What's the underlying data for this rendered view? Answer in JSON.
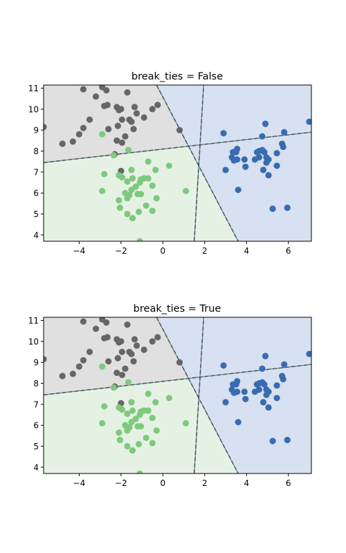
{
  "chart_data": [
    {
      "type": "scatter",
      "title": "break_ties = False",
      "xlabel": "",
      "ylabel": "",
      "xlim": [
        -5.7,
        7.1
      ],
      "ylim": [
        3.7,
        11.15
      ],
      "xticks": [
        -4,
        -2,
        0,
        2,
        4,
        6
      ],
      "yticks": [
        4,
        5,
        6,
        7,
        8,
        9,
        10,
        11
      ],
      "grid": false,
      "regions": [
        {
          "class": "gray",
          "color": "#e0e0e0"
        },
        {
          "class": "green",
          "color": "#e5f2e3"
        },
        {
          "class": "blue",
          "color": "#d8e1f1"
        }
      ],
      "decision_lines": [
        {
          "x1": -5.7,
          "y1": 7.45,
          "x2": 7.1,
          "y2": 8.9
        },
        {
          "x1": -0.3,
          "y1": 11.15,
          "x2": 3.6,
          "y2": 3.7
        },
        {
          "x1": 1.5,
          "y1": 3.7,
          "x2": 1.95,
          "y2": 11.15
        }
      ],
      "series": [
        {
          "color": "#666666",
          "points": [
            [
              -3.8,
              10.95
            ],
            [
              -2.9,
              11.05
            ],
            [
              -1.7,
              10.8
            ],
            [
              -3.2,
              10.6
            ],
            [
              -2.7,
              10.9
            ],
            [
              -2.8,
              10.15
            ],
            [
              -2.65,
              10.2
            ],
            [
              -2.2,
              10.1
            ],
            [
              -2.1,
              9.95
            ],
            [
              -2.0,
              10.0
            ],
            [
              -1.35,
              10.1
            ],
            [
              -0.5,
              10.0
            ],
            [
              -0.25,
              10.2
            ],
            [
              -1.25,
              9.8
            ],
            [
              -0.9,
              9.6
            ],
            [
              -1.5,
              9.4
            ],
            [
              -1.6,
              9.5
            ],
            [
              -1.95,
              9.5
            ],
            [
              -2.15,
              9.2
            ],
            [
              -2.6,
              9.05
            ],
            [
              -3.5,
              9.5
            ],
            [
              -3.8,
              9.1
            ],
            [
              -4.0,
              8.8
            ],
            [
              -4.3,
              8.45
            ],
            [
              -4.8,
              8.35
            ],
            [
              -5.7,
              9.15
            ],
            [
              -2.2,
              8.5
            ],
            [
              -1.8,
              8.7
            ],
            [
              -1.95,
              8.4
            ],
            [
              -1.4,
              9.05
            ],
            [
              0.8,
              9.0
            ],
            [
              -2.3,
              7.85
            ],
            [
              -2.0,
              7.05
            ]
          ]
        },
        {
          "color": "#7fc97f",
          "points": [
            [
              -2.9,
              8.8
            ],
            [
              -1.65,
              8.05
            ],
            [
              -2.35,
              7.8
            ],
            [
              -0.7,
              7.5
            ],
            [
              0.3,
              7.3
            ],
            [
              -1.5,
              7.1
            ],
            [
              -0.35,
              7.1
            ],
            [
              -2.1,
              6.85
            ],
            [
              -1.95,
              6.75
            ],
            [
              -1.45,
              6.7
            ],
            [
              -2.8,
              6.9
            ],
            [
              -1.05,
              6.65
            ],
            [
              -0.9,
              6.7
            ],
            [
              -0.7,
              6.7
            ],
            [
              -1.1,
              6.5
            ],
            [
              -1.7,
              6.55
            ],
            [
              -1.3,
              6.3
            ],
            [
              -0.5,
              6.35
            ],
            [
              -1.5,
              6.15
            ],
            [
              -1.8,
              6.0
            ],
            [
              -1.6,
              5.9
            ],
            [
              -1.2,
              5.95
            ],
            [
              -1.05,
              5.95
            ],
            [
              -2.9,
              6.1
            ],
            [
              1.1,
              6.1
            ],
            [
              -2.1,
              5.65
            ],
            [
              -1.7,
              5.75
            ],
            [
              -0.3,
              5.75
            ],
            [
              -2.05,
              5.3
            ],
            [
              -0.8,
              5.4
            ],
            [
              -1.7,
              5.0
            ],
            [
              -1.15,
              5.1
            ],
            [
              -0.5,
              5.15
            ],
            [
              -1.45,
              4.8
            ],
            [
              -1.1,
              3.7
            ]
          ]
        },
        {
          "color": "#386cb0",
          "points": [
            [
              7.0,
              9.4
            ],
            [
              4.9,
              9.3
            ],
            [
              5.8,
              8.9
            ],
            [
              2.9,
              8.85
            ],
            [
              4.75,
              8.7
            ],
            [
              5.7,
              8.35
            ],
            [
              5.75,
              8.2
            ],
            [
              3.55,
              8.1
            ],
            [
              3.35,
              7.95
            ],
            [
              3.5,
              7.95
            ],
            [
              4.6,
              8.0
            ],
            [
              4.75,
              8.05
            ],
            [
              4.85,
              7.95
            ],
            [
              4.5,
              7.95
            ],
            [
              5.45,
              7.9
            ],
            [
              3.3,
              7.7
            ],
            [
              3.55,
              7.6
            ],
            [
              3.4,
              7.55
            ],
            [
              3.9,
              7.6
            ],
            [
              4.6,
              7.7
            ],
            [
              4.4,
              7.6
            ],
            [
              4.95,
              7.7
            ],
            [
              5.05,
              7.6
            ],
            [
              4.95,
              7.45
            ],
            [
              5.45,
              7.3
            ],
            [
              3.95,
              7.25
            ],
            [
              3.0,
              7.1
            ],
            [
              4.8,
              7.1
            ],
            [
              5.05,
              6.85
            ],
            [
              3.6,
              6.15
            ],
            [
              5.25,
              5.25
            ],
            [
              5.95,
              5.3
            ]
          ]
        }
      ]
    },
    {
      "type": "scatter",
      "title": "break_ties = True",
      "xlabel": "",
      "ylabel": "",
      "xlim": [
        -5.7,
        7.1
      ],
      "ylim": [
        3.7,
        11.15
      ],
      "xticks": [
        -4,
        -2,
        0,
        2,
        4,
        6
      ],
      "yticks": [
        4,
        5,
        6,
        7,
        8,
        9,
        10,
        11
      ],
      "grid": false,
      "regions": [
        {
          "class": "gray",
          "color": "#e0e0e0"
        },
        {
          "class": "green",
          "color": "#e5f2e3"
        },
        {
          "class": "blue",
          "color": "#d8e1f1"
        }
      ],
      "decision_lines": [
        {
          "x1": -5.7,
          "y1": 7.45,
          "x2": 7.1,
          "y2": 8.9
        },
        {
          "x1": -0.3,
          "y1": 11.15,
          "x2": 3.6,
          "y2": 3.7
        },
        {
          "x1": 1.5,
          "y1": 3.7,
          "x2": 1.95,
          "y2": 11.15
        }
      ],
      "series": [
        {
          "color": "#666666",
          "points": [
            [
              -3.8,
              10.95
            ],
            [
              -2.9,
              11.05
            ],
            [
              -1.7,
              10.8
            ],
            [
              -3.2,
              10.6
            ],
            [
              -2.7,
              10.9
            ],
            [
              -2.8,
              10.15
            ],
            [
              -2.65,
              10.2
            ],
            [
              -2.2,
              10.1
            ],
            [
              -2.1,
              9.95
            ],
            [
              -2.0,
              10.0
            ],
            [
              -1.35,
              10.1
            ],
            [
              -0.5,
              10.0
            ],
            [
              -0.25,
              10.2
            ],
            [
              -1.25,
              9.8
            ],
            [
              -0.9,
              9.6
            ],
            [
              -1.5,
              9.4
            ],
            [
              -1.6,
              9.5
            ],
            [
              -1.95,
              9.5
            ],
            [
              -2.15,
              9.2
            ],
            [
              -2.6,
              9.05
            ],
            [
              -3.5,
              9.5
            ],
            [
              -3.8,
              9.1
            ],
            [
              -4.0,
              8.8
            ],
            [
              -4.3,
              8.45
            ],
            [
              -4.8,
              8.35
            ],
            [
              -5.7,
              9.15
            ],
            [
              -2.2,
              8.5
            ],
            [
              -1.8,
              8.7
            ],
            [
              -1.95,
              8.4
            ],
            [
              -1.4,
              9.05
            ],
            [
              0.8,
              9.0
            ],
            [
              -2.3,
              7.85
            ],
            [
              -2.0,
              7.05
            ]
          ]
        },
        {
          "color": "#7fc97f",
          "points": [
            [
              -2.9,
              8.8
            ],
            [
              -1.65,
              8.05
            ],
            [
              -2.35,
              7.8
            ],
            [
              -0.7,
              7.5
            ],
            [
              0.3,
              7.3
            ],
            [
              -1.5,
              7.1
            ],
            [
              -0.35,
              7.1
            ],
            [
              -2.1,
              6.85
            ],
            [
              -1.95,
              6.75
            ],
            [
              -1.45,
              6.7
            ],
            [
              -2.8,
              6.9
            ],
            [
              -1.05,
              6.65
            ],
            [
              -0.9,
              6.7
            ],
            [
              -0.7,
              6.7
            ],
            [
              -1.1,
              6.5
            ],
            [
              -1.7,
              6.55
            ],
            [
              -1.3,
              6.3
            ],
            [
              -0.5,
              6.35
            ],
            [
              -1.5,
              6.15
            ],
            [
              -1.8,
              6.0
            ],
            [
              -1.6,
              5.9
            ],
            [
              -1.2,
              5.95
            ],
            [
              -1.05,
              5.95
            ],
            [
              -2.9,
              6.1
            ],
            [
              1.1,
              6.1
            ],
            [
              -2.1,
              5.65
            ],
            [
              -1.7,
              5.75
            ],
            [
              -0.3,
              5.75
            ],
            [
              -2.05,
              5.3
            ],
            [
              -0.8,
              5.4
            ],
            [
              -1.7,
              5.0
            ],
            [
              -1.15,
              5.1
            ],
            [
              -0.5,
              5.15
            ],
            [
              -1.45,
              4.8
            ],
            [
              -1.1,
              3.7
            ]
          ]
        },
        {
          "color": "#386cb0",
          "points": [
            [
              7.0,
              9.4
            ],
            [
              4.9,
              9.3
            ],
            [
              5.8,
              8.9
            ],
            [
              2.9,
              8.85
            ],
            [
              4.75,
              8.7
            ],
            [
              5.7,
              8.35
            ],
            [
              5.75,
              8.2
            ],
            [
              3.55,
              8.1
            ],
            [
              3.35,
              7.95
            ],
            [
              3.5,
              7.95
            ],
            [
              4.6,
              8.0
            ],
            [
              4.75,
              8.05
            ],
            [
              4.85,
              7.95
            ],
            [
              4.5,
              7.95
            ],
            [
              5.45,
              7.9
            ],
            [
              3.3,
              7.7
            ],
            [
              3.55,
              7.6
            ],
            [
              3.4,
              7.55
            ],
            [
              3.9,
              7.6
            ],
            [
              4.6,
              7.7
            ],
            [
              4.4,
              7.6
            ],
            [
              4.95,
              7.7
            ],
            [
              5.05,
              7.6
            ],
            [
              4.95,
              7.45
            ],
            [
              5.45,
              7.3
            ],
            [
              3.95,
              7.25
            ],
            [
              3.0,
              7.1
            ],
            [
              4.8,
              7.1
            ],
            [
              5.05,
              6.85
            ],
            [
              3.6,
              6.15
            ],
            [
              5.25,
              5.25
            ],
            [
              5.95,
              5.3
            ]
          ]
        }
      ]
    }
  ]
}
